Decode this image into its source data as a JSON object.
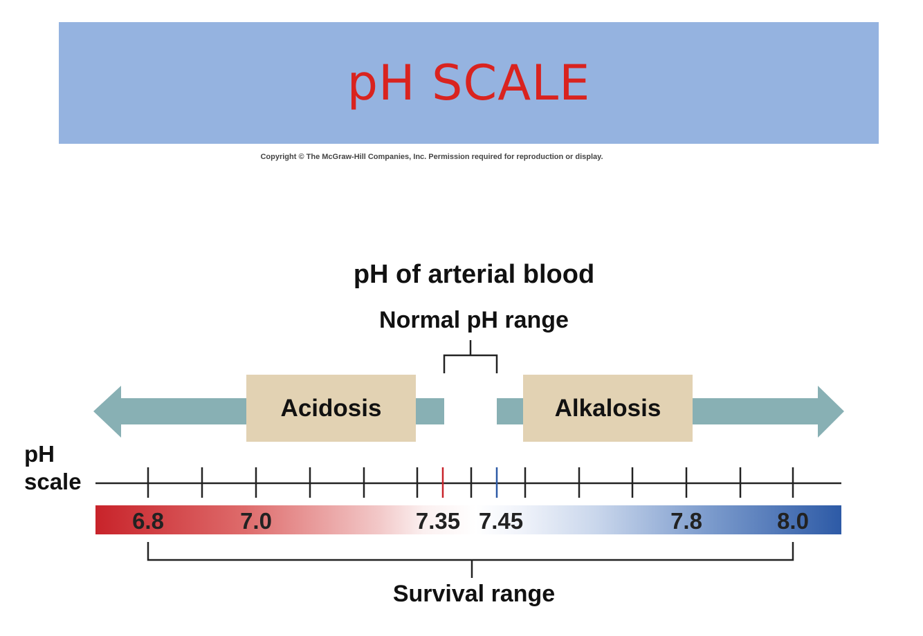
{
  "banner": {
    "title": "pH SCALE"
  },
  "copyright": "Copyright © The McGraw-Hill Companies, Inc. Permission required for reproduction or display.",
  "diagram": {
    "title": "pH of arterial blood",
    "normal_range_label": "Normal pH range",
    "acidosis_label": "Acidosis",
    "alkalosis_label": "Alkalosis",
    "axis_label_line1": "pH",
    "axis_label_line2": "scale",
    "survival_range_label": "Survival range",
    "scale_labels": [
      "6.8",
      "7.0",
      "7.35",
      "7.45",
      "7.8",
      "8.0"
    ],
    "colors": {
      "acid": "#c8232a",
      "base": "#2d5aa6",
      "arrow": "#88b0b4",
      "box": "#e2d2b3",
      "banner": "#95b3e0",
      "title": "#d9231f"
    }
  }
}
